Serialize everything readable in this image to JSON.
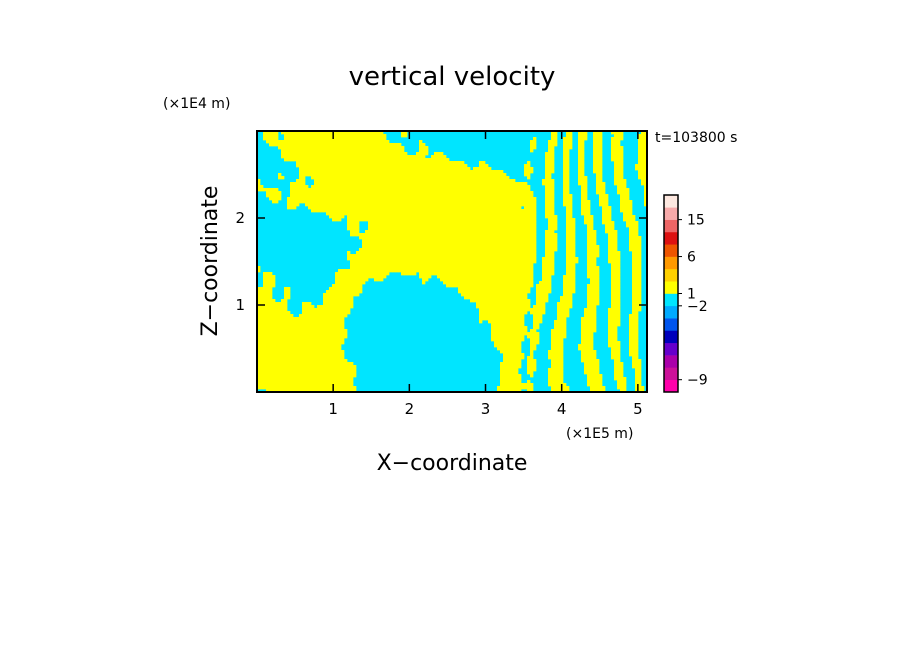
{
  "chart_data": {
    "type": "heatmap",
    "title": "vertical velocity",
    "xlabel": "X−coordinate",
    "ylabel": "Z−coordinate",
    "x_unit": "(×1E5 m)",
    "y_unit": "(×1E4 m)",
    "time_label": "t=103800 s",
    "xlim": [
      0,
      5.12
    ],
    "ylim": [
      0,
      3.0
    ],
    "x_ticks": [
      1,
      2,
      3,
      4,
      5
    ],
    "y_ticks": [
      1,
      2
    ],
    "colors": {
      "positive_weak": "#ffff00",
      "negative_weak": "#00e5ff"
    },
    "colorbar": {
      "bins": [
        {
          "color": "#ff00aa"
        },
        {
          "color": "#cc1199"
        },
        {
          "color": "#aa00aa"
        },
        {
          "color": "#6600cc"
        },
        {
          "color": "#0000bb"
        },
        {
          "color": "#0055ee"
        },
        {
          "color": "#00aaff"
        },
        {
          "color": "#00e5ff"
        },
        {
          "color": "#ffff00"
        },
        {
          "color": "#ffd000"
        },
        {
          "color": "#ff9900"
        },
        {
          "color": "#ee5500"
        },
        {
          "color": "#dd1111"
        },
        {
          "color": "#ee6666"
        },
        {
          "color": "#f7aaaa"
        },
        {
          "color": "#fde8e0"
        }
      ],
      "tick_labels": [
        {
          "label": "−9",
          "bin": 1
        },
        {
          "label": "−2",
          "bin": 7
        },
        {
          "label": "1",
          "bin": 8
        },
        {
          "label": "6",
          "bin": 11
        },
        {
          "label": "15",
          "bin": 14
        }
      ]
    },
    "grid": false,
    "legend": "right"
  }
}
